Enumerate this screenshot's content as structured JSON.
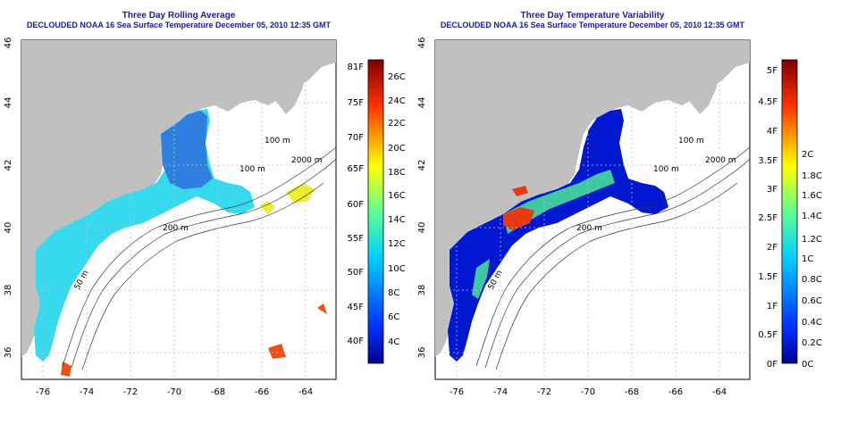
{
  "maps": [
    {
      "title": "Three Day Rolling Average",
      "subtitle": "DECLOUDED NOAA 16 Sea Surface Temperature December 05, 2010 12:35 GMT",
      "lon_ticks": [
        "-76",
        "-74",
        "-72",
        "-70",
        "-68",
        "-66",
        "-64"
      ],
      "lat_ticks": [
        "36",
        "38",
        "40",
        "42",
        "44",
        "46"
      ],
      "contour_labels": [
        "100 m",
        "100 m",
        "2000 m",
        "200 m",
        "50 m"
      ],
      "colorbar_f": [
        "81F",
        "75F",
        "70F",
        "65F",
        "60F",
        "55F",
        "50F",
        "45F",
        "40F"
      ],
      "colorbar_c": [
        "26C",
        "24C",
        "22C",
        "20C",
        "18C",
        "16C",
        "14C",
        "12C",
        "10C",
        "8C",
        "6C",
        "4C"
      ],
      "colormap": "jet"
    },
    {
      "title": "Three Day Temperature Variability",
      "subtitle": "DECLOUDED NOAA 16 Sea Surface Temperature December 05, 2010 12:35 GMT",
      "lon_ticks": [
        "-76",
        "-74",
        "-72",
        "-70",
        "-68",
        "-66",
        "-64"
      ],
      "lat_ticks": [
        "36",
        "38",
        "40",
        "42",
        "44",
        "46"
      ],
      "contour_labels": [
        "100 m",
        "100 m",
        "2000 m",
        "200 m",
        "50 m"
      ],
      "colorbar_f": [
        "5F",
        "4.5F",
        "4F",
        "3.5F",
        "3F",
        "2.5F",
        "2F",
        "1.5F",
        "1F",
        "0.5F",
        "0F"
      ],
      "colorbar_c": [
        "2C",
        "1.8C",
        "1.6C",
        "1.4C",
        "1.2C",
        "1C",
        "0.8C",
        "0.6C",
        "0.4C",
        "0.2C",
        "0C"
      ],
      "colormap": "jet"
    }
  ],
  "colors": {
    "title": "#1a1aa8",
    "land": "#c0c0c0",
    "grid": "#bdbdbd"
  }
}
